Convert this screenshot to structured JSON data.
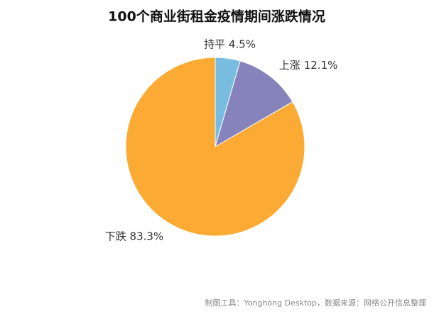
{
  "chart_data": {
    "type": "pie",
    "title": "100个商业街租金疫情期间涨跌情况",
    "categories": [
      "持平",
      "上涨",
      "下跌"
    ],
    "values": [
      4.5,
      12.1,
      83.3
    ],
    "value_labels": [
      "4.5%",
      "12.1%",
      "83.3%"
    ],
    "colors": [
      "#78bde0",
      "#8682bb",
      "#fbaa33"
    ],
    "footer": "制图工具：Yonghong Desktop，数据来源：网络公开信息整理"
  }
}
